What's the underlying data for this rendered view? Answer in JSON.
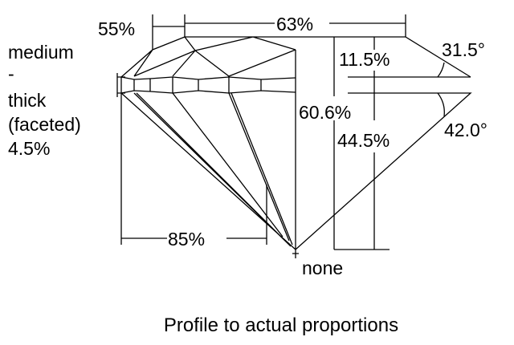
{
  "labels": {
    "table_pct": "55%",
    "diameter_pct": "63%",
    "crown_height": "11.5%",
    "crown_angle": "31.5°",
    "total_depth": "60.6%",
    "pavilion_depth": "44.5%",
    "pavilion_angle": "42.0°",
    "lower_half": "85%",
    "girdle": [
      "medium",
      "-",
      "thick",
      "(faceted)",
      "4.5%"
    ],
    "culet": "none"
  },
  "caption": "Profile to actual proportions"
}
